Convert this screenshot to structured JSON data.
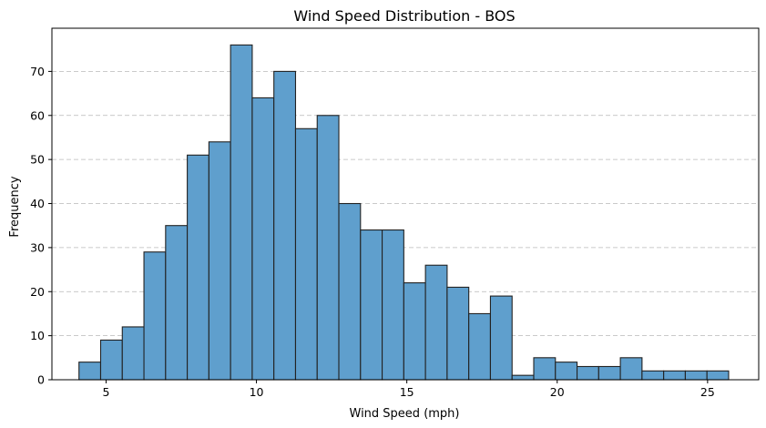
{
  "chart_data": {
    "type": "bar",
    "title": "Wind Speed Distribution - BOS",
    "xlabel": "Wind Speed (mph)",
    "ylabel": "Frequency",
    "xlim": [
      3.2,
      26.7
    ],
    "ylim": [
      0,
      79.8
    ],
    "bin_start": 4.1,
    "bin_width": 0.72,
    "values": [
      4,
      9,
      12,
      29,
      35,
      51,
      54,
      76,
      64,
      70,
      57,
      60,
      40,
      34,
      34,
      22,
      26,
      21,
      15,
      19,
      1,
      5,
      4,
      3,
      3,
      5,
      2,
      2,
      2,
      2
    ],
    "xticks": [
      5,
      10,
      15,
      20,
      25
    ],
    "yticks": [
      0,
      10,
      20,
      30,
      40,
      50,
      60,
      70
    ],
    "grid": "y-dashed",
    "bar_color": "#5f9fcd",
    "edge_color": "#222222"
  }
}
